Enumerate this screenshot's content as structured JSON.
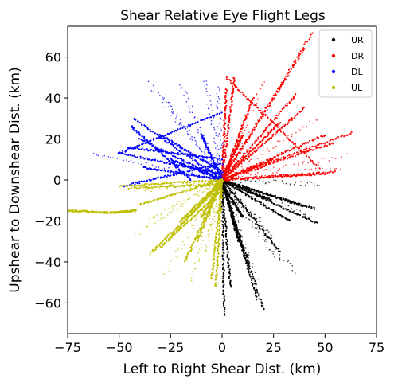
{
  "chart_data": {
    "type": "scatter",
    "title": "Shear Relative Eye Flight Legs",
    "xlabel": "Left to Right Shear Dist. (km)",
    "ylabel": "Upshear to Downshear Dist. (km)",
    "xlim": [
      -75,
      75
    ],
    "ylim": [
      -75,
      75
    ],
    "xticks": [
      -75,
      -50,
      -25,
      0,
      25,
      50,
      75
    ],
    "yticks": [
      -60,
      -40,
      -20,
      0,
      20,
      40,
      60
    ],
    "xtick_labels": [
      "−75",
      "−50",
      "−25",
      "0",
      "25",
      "50",
      "75"
    ],
    "ytick_labels": [
      "−60",
      "−40",
      "−20",
      "0",
      "20",
      "40",
      "60"
    ],
    "grid": false,
    "legend_position": "top-right",
    "series": [
      {
        "name": "UR",
        "color": "#000000",
        "legs": [
          [
            [
              0,
              0
            ],
            [
              20,
              -63
            ]
          ],
          [
            [
              0,
              0
            ],
            [
              17,
              -58
            ]
          ],
          [
            [
              0,
              0
            ],
            [
              1,
              -66
            ]
          ],
          [
            [
              0,
              0
            ],
            [
              4,
              -52
            ]
          ],
          [
            [
              0,
              0
            ],
            [
              46,
              -21
            ]
          ],
          [
            [
              0,
              0
            ],
            [
              40,
              -13
            ]
          ],
          [
            [
              0,
              0
            ],
            [
              12,
              -40
            ]
          ],
          [
            [
              0,
              0
            ],
            [
              28,
              -35
            ]
          ],
          [
            [
              0,
              0
            ],
            [
              8,
              -30
            ]
          ],
          [
            [
              0,
              0
            ],
            [
              45,
              -14
            ]
          ],
          [
            [
              0,
              -2
            ],
            [
              10,
              -18
            ]
          ],
          [
            [
              0,
              0
            ],
            [
              33,
              -20
            ]
          ],
          [
            [
              0,
              0
            ],
            [
              6,
              -22
            ]
          ],
          [
            [
              0,
              0
            ],
            [
              24,
              -10
            ]
          ]
        ],
        "sparse_legs": [
          [
            [
              0,
              0
            ],
            [
              28,
              -40
            ]
          ],
          [
            [
              0,
              0
            ],
            [
              43,
              -18
            ]
          ],
          [
            [
              0,
              0
            ],
            [
              48,
              -2
            ]
          ],
          [
            [
              0,
              0
            ],
            [
              35,
              -45
            ]
          ],
          [
            [
              0,
              0
            ],
            [
              25,
              -28
            ]
          ],
          [
            [
              0,
              0
            ],
            [
              17,
              -50
            ]
          ]
        ]
      },
      {
        "name": "DR",
        "color": "#ff0000",
        "legs": [
          [
            [
              0,
              0
            ],
            [
              44,
              72
            ]
          ],
          [
            [
              0,
              0
            ],
            [
              40,
              64
            ]
          ],
          [
            [
              0,
              0
            ],
            [
              63,
              23
            ]
          ],
          [
            [
              0,
              0
            ],
            [
              54,
              18
            ]
          ],
          [
            [
              0,
              0
            ],
            [
              50,
              22
            ]
          ],
          [
            [
              2,
              50
            ],
            [
              47,
              6
            ]
          ],
          [
            [
              0,
              0
            ],
            [
              36,
              42
            ]
          ],
          [
            [
              0,
              0
            ],
            [
              15,
              40
            ]
          ],
          [
            [
              0,
              0
            ],
            [
              40,
              35
            ]
          ],
          [
            [
              0,
              0
            ],
            [
              50,
              3
            ]
          ],
          [
            [
              0,
              0
            ],
            [
              28,
              28
            ]
          ],
          [
            [
              0,
              0
            ],
            [
              10,
              22
            ]
          ],
          [
            [
              0,
              0
            ],
            [
              55,
              4
            ]
          ],
          [
            [
              0,
              0
            ],
            [
              6,
              50
            ]
          ],
          [
            [
              0,
              0
            ],
            [
              2,
              44
            ]
          ],
          [
            [
              0,
              0
            ],
            [
              25,
              10
            ]
          ]
        ],
        "sparse_legs": [
          [
            [
              0,
              0
            ],
            [
              30,
              48
            ]
          ],
          [
            [
              0,
              0
            ],
            [
              60,
              12
            ]
          ],
          [
            [
              0,
              0
            ],
            [
              46,
              30
            ]
          ],
          [
            [
              0,
              0
            ],
            [
              20,
              48
            ]
          ],
          [
            [
              0,
              0
            ],
            [
              58,
              6
            ]
          ]
        ]
      },
      {
        "name": "DL",
        "color": "#0000ff",
        "legs": [
          [
            [
              -50,
              13
            ],
            [
              0,
              33
            ]
          ],
          [
            [
              -50,
              13
            ],
            [
              0,
              3
            ]
          ],
          [
            [
              -43,
              30
            ],
            [
              0,
              0
            ]
          ],
          [
            [
              -44,
              26
            ],
            [
              -15,
              0
            ]
          ],
          [
            [
              -48,
              -3
            ],
            [
              0,
              8
            ]
          ],
          [
            [
              -40,
              20
            ],
            [
              0,
              0
            ]
          ],
          [
            [
              -30,
              22
            ],
            [
              0,
              4
            ]
          ],
          [
            [
              -25,
              10
            ],
            [
              0,
              0
            ]
          ],
          [
            [
              -10,
              22
            ],
            [
              0,
              0
            ]
          ],
          [
            [
              -38,
              6
            ],
            [
              0,
              0
            ]
          ],
          [
            [
              -46,
              16
            ],
            [
              0,
              10
            ]
          ]
        ],
        "sparse_legs": [
          [
            [
              -63,
              13
            ],
            [
              0,
              0
            ]
          ],
          [
            [
              -35,
              47
            ],
            [
              0,
              0
            ]
          ],
          [
            [
              -20,
              46
            ],
            [
              0,
              0
            ]
          ],
          [
            [
              -8,
              49
            ],
            [
              0,
              0
            ]
          ],
          [
            [
              -28,
              40
            ],
            [
              0,
              0
            ]
          ],
          [
            [
              -2,
              45
            ],
            [
              0,
              0
            ]
          ]
        ]
      },
      {
        "name": "UL",
        "color": "#bfbf00",
        "legs": [
          [
            [
              -75,
              -15
            ],
            [
              -53,
              -16
            ]
          ],
          [
            [
              -53,
              -16
            ],
            [
              -42,
              -15
            ]
          ],
          [
            [
              -50,
              -3
            ],
            [
              0,
              0
            ]
          ],
          [
            [
              -45,
              -4
            ],
            [
              0,
              -2
            ]
          ],
          [
            [
              -35,
              -36
            ],
            [
              0,
              -2
            ]
          ],
          [
            [
              -30,
              -33
            ],
            [
              0,
              -5
            ]
          ],
          [
            [
              -5,
              -48
            ],
            [
              0,
              0
            ]
          ],
          [
            [
              -3,
              -52
            ],
            [
              0,
              -2
            ]
          ],
          [
            [
              -20,
              -20
            ],
            [
              0,
              0
            ]
          ],
          [
            [
              -18,
              -40
            ],
            [
              0,
              0
            ]
          ],
          [
            [
              -12,
              -30
            ],
            [
              0,
              0
            ]
          ],
          [
            [
              -40,
              -12
            ],
            [
              0,
              0
            ]
          ],
          [
            [
              -10,
              -18
            ],
            [
              0,
              0
            ]
          ],
          [
            [
              -25,
              -28
            ],
            [
              0,
              0
            ]
          ]
        ],
        "sparse_legs": [
          [
            [
              -42,
              -27
            ],
            [
              0,
              0
            ]
          ],
          [
            [
              -36,
              -20
            ],
            [
              0,
              0
            ]
          ],
          [
            [
              -28,
              -46
            ],
            [
              0,
              0
            ]
          ],
          [
            [
              -15,
              -50
            ],
            [
              0,
              0
            ]
          ],
          [
            [
              -8,
              -35
            ],
            [
              0,
              0
            ]
          ],
          [
            [
              -38,
              -5
            ],
            [
              0,
              0
            ]
          ]
        ]
      }
    ]
  }
}
